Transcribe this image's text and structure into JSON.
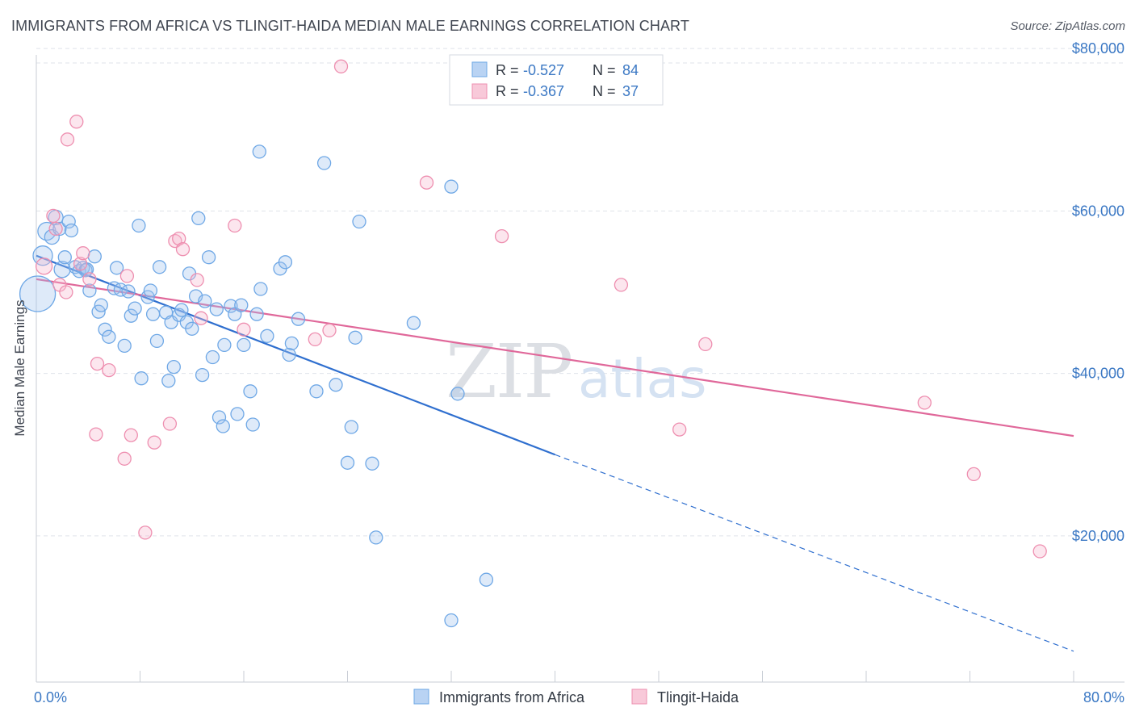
{
  "title": "IMMIGRANTS FROM AFRICA VS TLINGIT-HAIDA MEDIAN MALE EARNINGS CORRELATION CHART",
  "source": "Source: ZipAtlas.com",
  "watermark": {
    "part1": "ZIP",
    "part2": "atlas"
  },
  "colors": {
    "blue": "#6fa8e6",
    "blue_fill": "rgba(160,196,238,0.35)",
    "blue_line": "#2f6fcf",
    "pink": "#ee8fb0",
    "pink_fill": "rgba(246,182,205,0.35)",
    "pink_line": "#e0689a",
    "grid": "#dfe3ea",
    "label_blue": "#3b78c4"
  },
  "legend": {
    "rows": [
      {
        "r_label": "R =",
        "r_value": "-0.527",
        "n_label": "N =",
        "n_value": "84"
      },
      {
        "r_label": "R =",
        "r_value": "-0.367",
        "n_label": "N =",
        "n_value": "37"
      }
    ]
  },
  "chart_data": {
    "type": "scatter",
    "ylabel": "Median Male Earnings",
    "xlim": [
      0,
      80
    ],
    "ylim": [
      2000,
      82000
    ],
    "x_tick_labels": [
      "0.0%",
      "80.0%"
    ],
    "y_ticks": [
      {
        "value": 20000,
        "label": "$20,000"
      },
      {
        "value": 40000,
        "label": "$40,000"
      },
      {
        "value": 60000,
        "label": "$60,000"
      },
      {
        "value": 80000,
        "label": "$80,000"
      }
    ],
    "series": [
      {
        "name": "Immigrants from Africa",
        "color": "blue",
        "trend": {
          "x0": 0,
          "y0": 54500,
          "x1": 40,
          "y1": 30000,
          "dash_to_x": 80,
          "dash_to_y": 5800
        },
        "points": [
          [
            0.1,
            49800,
            22
          ],
          [
            0.5,
            54500,
            12
          ],
          [
            0.8,
            57500,
            11
          ],
          [
            1.2,
            56800,
            9
          ],
          [
            1.5,
            59200,
            9
          ],
          [
            1.8,
            57800,
            8
          ],
          [
            2.0,
            52800,
            10
          ],
          [
            2.2,
            54300,
            8
          ],
          [
            2.5,
            58700,
            8
          ],
          [
            2.7,
            57600,
            8
          ],
          [
            3.0,
            53100,
            8
          ],
          [
            3.3,
            52600,
            8
          ],
          [
            3.6,
            53000,
            8
          ],
          [
            3.8,
            52700,
            8
          ],
          [
            4.1,
            50200,
            8
          ],
          [
            4.5,
            54400,
            8
          ],
          [
            4.8,
            47600,
            8
          ],
          [
            5.0,
            48400,
            8
          ],
          [
            5.3,
            45400,
            8
          ],
          [
            5.6,
            44500,
            8
          ],
          [
            6.0,
            50500,
            8
          ],
          [
            6.2,
            53000,
            8
          ],
          [
            6.5,
            50300,
            8
          ],
          [
            6.8,
            43400,
            8
          ],
          [
            7.1,
            50100,
            8
          ],
          [
            7.3,
            47100,
            8
          ],
          [
            7.6,
            48000,
            8
          ],
          [
            7.9,
            58200,
            8
          ],
          [
            8.1,
            39400,
            8
          ],
          [
            8.6,
            49400,
            8
          ],
          [
            8.8,
            50200,
            8
          ],
          [
            9.0,
            47300,
            8
          ],
          [
            9.3,
            44000,
            8
          ],
          [
            9.5,
            53100,
            8
          ],
          [
            10.0,
            47500,
            8
          ],
          [
            10.2,
            39100,
            8
          ],
          [
            10.4,
            46300,
            8
          ],
          [
            10.6,
            40800,
            8
          ],
          [
            11.0,
            47200,
            8
          ],
          [
            11.2,
            47800,
            8
          ],
          [
            11.6,
            46300,
            8
          ],
          [
            11.8,
            52300,
            8
          ],
          [
            12.0,
            45500,
            8
          ],
          [
            12.3,
            49500,
            8
          ],
          [
            12.5,
            59100,
            8
          ],
          [
            12.8,
            39800,
            8
          ],
          [
            13.0,
            48900,
            8
          ],
          [
            13.3,
            54300,
            8
          ],
          [
            13.6,
            42000,
            8
          ],
          [
            13.9,
            47900,
            8
          ],
          [
            14.1,
            34600,
            8
          ],
          [
            14.5,
            43500,
            8
          ],
          [
            14.4,
            33500,
            8
          ],
          [
            15.0,
            48300,
            8
          ],
          [
            15.3,
            47300,
            8
          ],
          [
            15.5,
            35000,
            8
          ],
          [
            15.8,
            48400,
            8
          ],
          [
            16.0,
            43500,
            8
          ],
          [
            16.5,
            37800,
            8
          ],
          [
            16.7,
            33700,
            8
          ],
          [
            17.0,
            47300,
            8
          ],
          [
            17.2,
            67300,
            8
          ],
          [
            17.3,
            50400,
            8
          ],
          [
            17.8,
            44600,
            8
          ],
          [
            18.8,
            52900,
            8
          ],
          [
            19.2,
            53700,
            8
          ],
          [
            19.5,
            42300,
            8
          ],
          [
            19.7,
            43700,
            8
          ],
          [
            20.2,
            46700,
            8
          ],
          [
            21.6,
            37800,
            8
          ],
          [
            22.2,
            65900,
            8
          ],
          [
            23.1,
            38600,
            8
          ],
          [
            24.0,
            29000,
            8
          ],
          [
            24.3,
            33400,
            8
          ],
          [
            24.6,
            44400,
            8
          ],
          [
            24.9,
            58700,
            8
          ],
          [
            25.9,
            28900,
            8
          ],
          [
            26.2,
            19800,
            8
          ],
          [
            29.1,
            46200,
            8
          ],
          [
            32.0,
            63000,
            8
          ],
          [
            32.5,
            37500,
            8
          ],
          [
            34.7,
            14600,
            8
          ],
          [
            32.0,
            9600,
            8
          ],
          [
            3.9,
            52800,
            8
          ]
        ]
      },
      {
        "name": "Tlingit-Haida",
        "color": "pink",
        "trend": {
          "x0": 0,
          "y0": 51600,
          "x1": 80,
          "y1": 32300
        },
        "points": [
          [
            0.6,
            53200,
            10
          ],
          [
            1.3,
            59400,
            8
          ],
          [
            1.5,
            57800,
            8
          ],
          [
            1.8,
            50900,
            8
          ],
          [
            2.3,
            50000,
            8
          ],
          [
            2.4,
            68800,
            8
          ],
          [
            3.1,
            71000,
            8
          ],
          [
            3.4,
            53500,
            8
          ],
          [
            3.6,
            54800,
            8
          ],
          [
            4.1,
            51600,
            8
          ],
          [
            4.6,
            32500,
            8
          ],
          [
            4.7,
            41200,
            8
          ],
          [
            5.6,
            40400,
            8
          ],
          [
            6.8,
            29500,
            8
          ],
          [
            7.0,
            52000,
            8
          ],
          [
            7.3,
            32400,
            8
          ],
          [
            8.4,
            20400,
            8
          ],
          [
            9.1,
            31500,
            8
          ],
          [
            10.3,
            33800,
            8
          ],
          [
            10.7,
            56300,
            8
          ],
          [
            11.0,
            56600,
            8
          ],
          [
            11.3,
            55300,
            8
          ],
          [
            12.4,
            51500,
            8
          ],
          [
            12.7,
            46800,
            8
          ],
          [
            15.3,
            58200,
            8
          ],
          [
            16.0,
            45400,
            8
          ],
          [
            21.5,
            44200,
            8
          ],
          [
            22.6,
            45300,
            8
          ],
          [
            23.5,
            77800,
            8
          ],
          [
            30.1,
            63500,
            8
          ],
          [
            35.9,
            56900,
            8
          ],
          [
            45.1,
            50900,
            8
          ],
          [
            49.6,
            33100,
            8
          ],
          [
            51.6,
            43600,
            8
          ],
          [
            68.5,
            36400,
            8
          ],
          [
            72.3,
            27600,
            8
          ],
          [
            77.4,
            18100,
            8
          ]
        ]
      }
    ]
  }
}
